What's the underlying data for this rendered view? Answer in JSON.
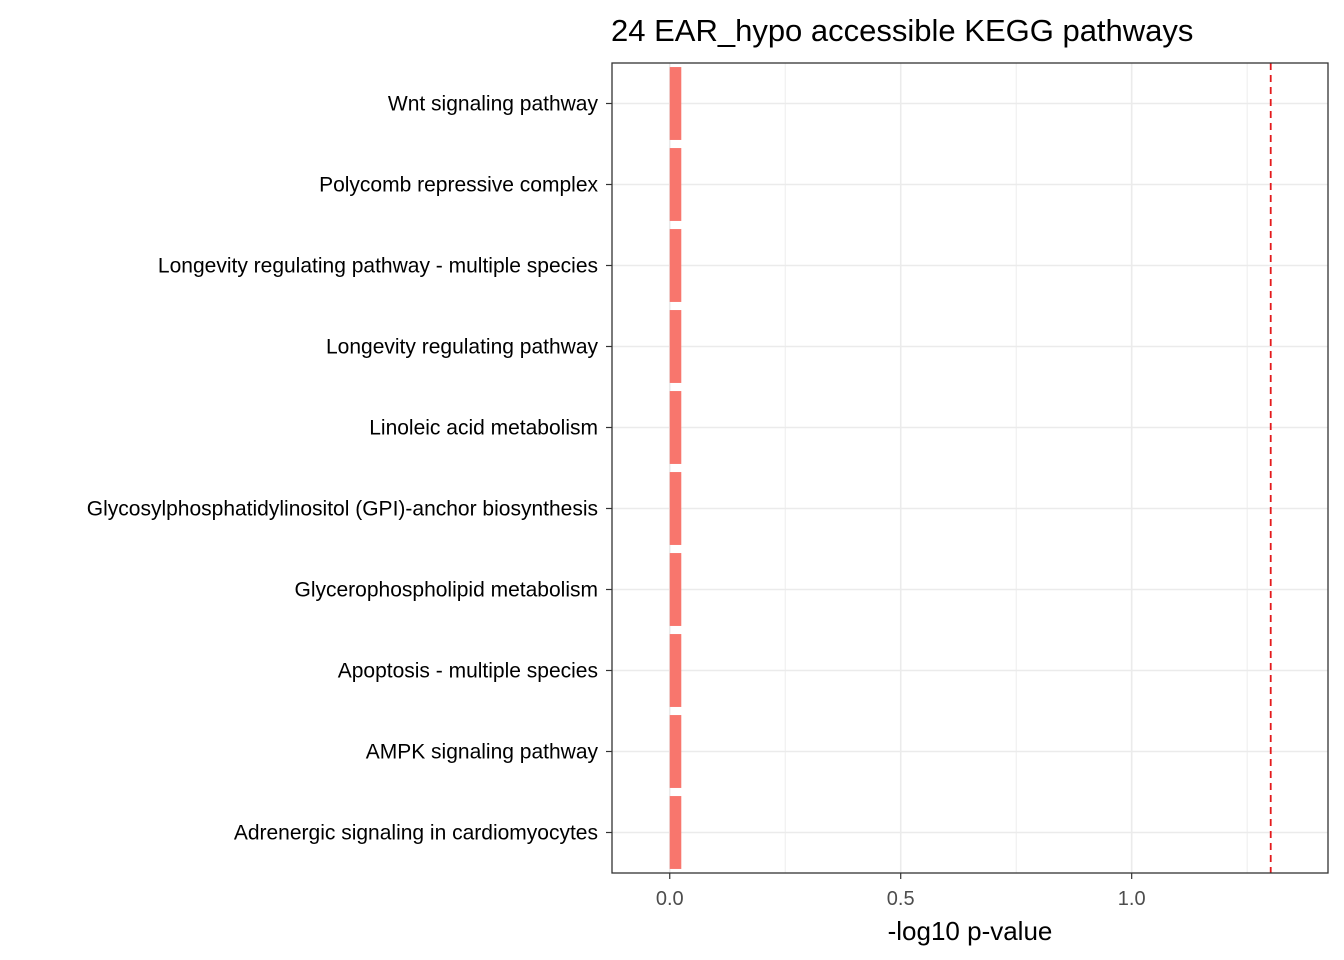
{
  "chart_data": {
    "type": "bar",
    "orientation": "horizontal",
    "title": "24 EAR_hypo accessible KEGG pathways",
    "xlabel": "-log10 p-value",
    "ylabel": "",
    "categories": [
      "Wnt signaling pathway",
      "Polycomb repressive complex",
      "Longevity regulating pathway - multiple species",
      "Longevity regulating pathway",
      "Linoleic acid metabolism",
      "Glycosylphosphatidylinositol (GPI)-anchor biosynthesis",
      "Glycerophospholipid metabolism",
      "Apoptosis - multiple species",
      "AMPK signaling pathway",
      "Adrenergic signaling in cardiomyocytes"
    ],
    "values": [
      0.025,
      0.025,
      0.025,
      0.025,
      0.025,
      0.025,
      0.025,
      0.025,
      0.025,
      0.025
    ],
    "xlim": [
      -0.125,
      1.425
    ],
    "xticks": [
      0.0,
      0.5,
      1.0
    ],
    "xtick_labels": [
      "0.0",
      "0.5",
      "1.0"
    ],
    "reference_line": {
      "value": 1.301,
      "style": "dashed"
    },
    "grid": true,
    "legend": "none",
    "colors": {
      "bar": "#F8766D",
      "reference_line": "#E41A1C",
      "grid": "#EBEBEB",
      "panel_border": "#333333"
    }
  }
}
